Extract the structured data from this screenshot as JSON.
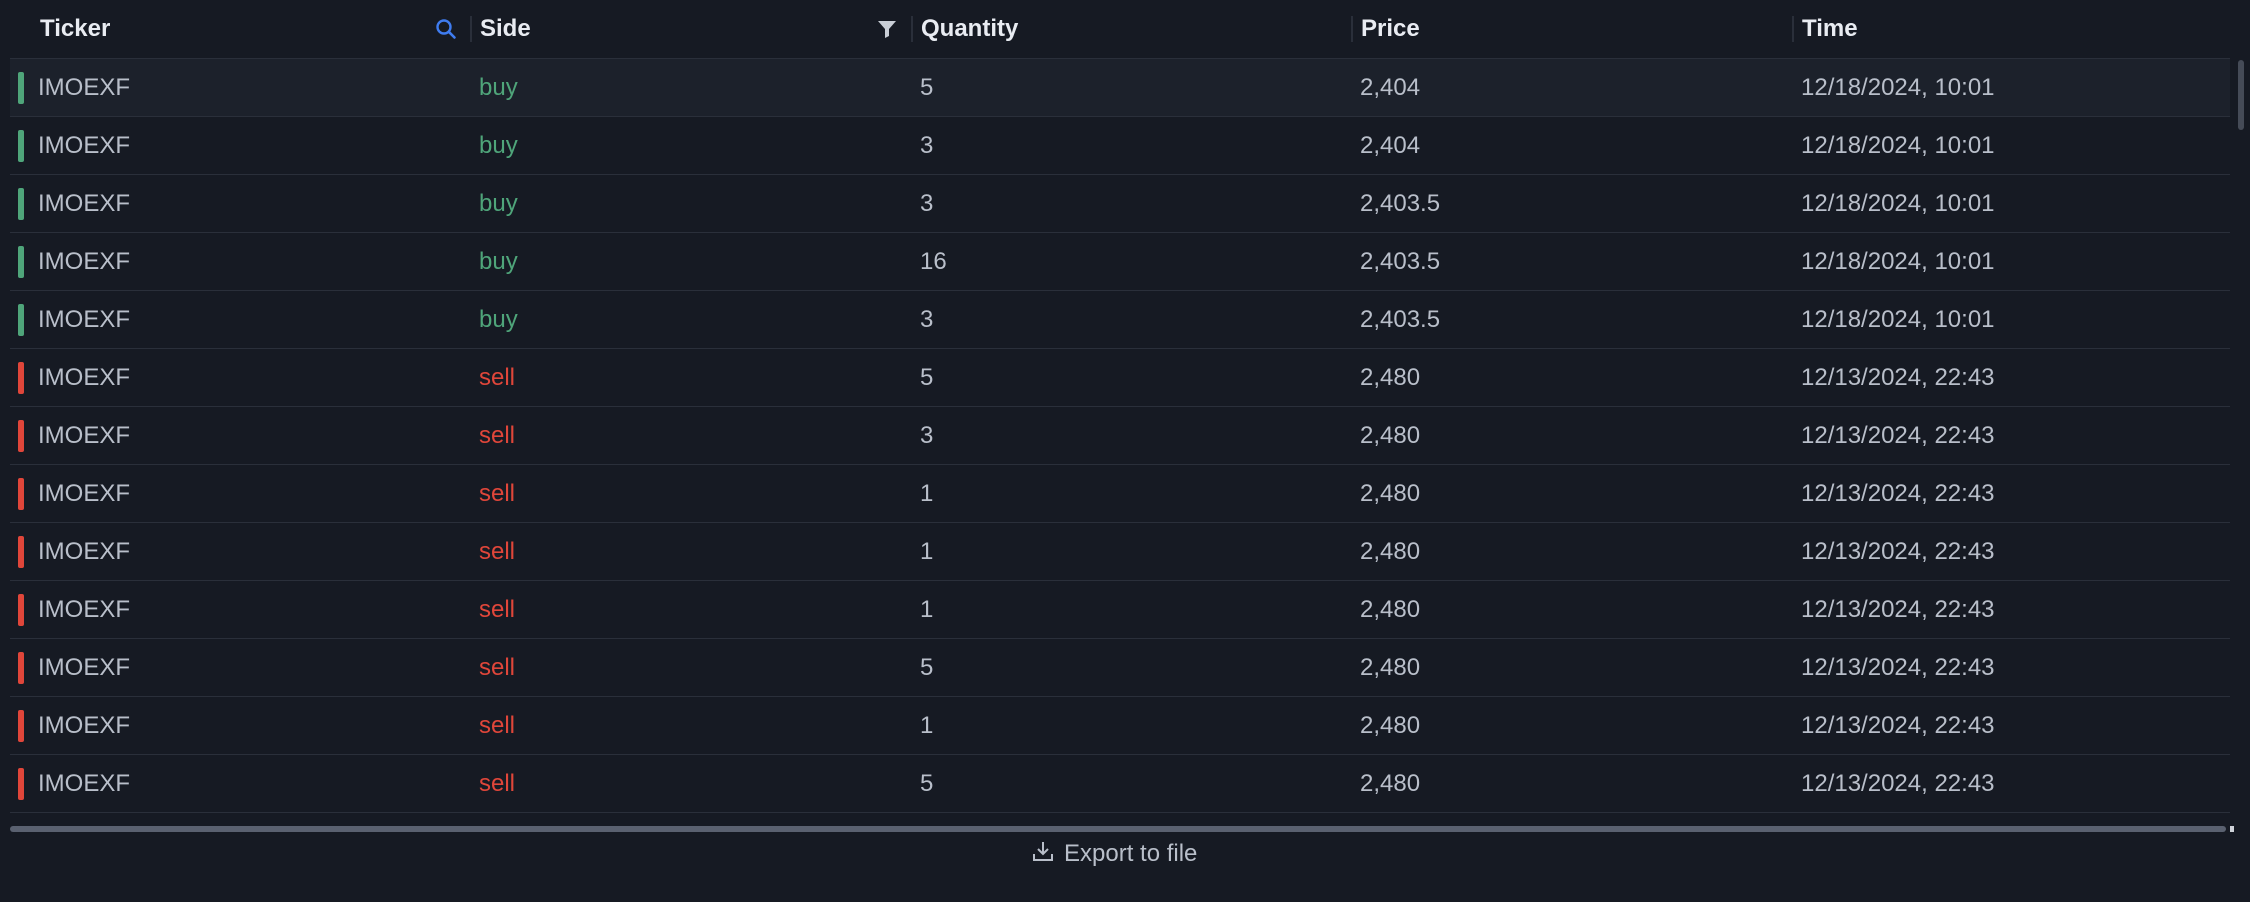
{
  "colors": {
    "buy": "#4fa57a",
    "sell": "#e0463a",
    "search_icon": "#3f7cf0"
  },
  "columns": [
    {
      "key": "ticker",
      "label": "Ticker"
    },
    {
      "key": "side",
      "label": "Side"
    },
    {
      "key": "quantity",
      "label": "Quantity"
    },
    {
      "key": "price",
      "label": "Price"
    },
    {
      "key": "time",
      "label": "Time"
    }
  ],
  "rows": [
    {
      "ticker": "IMOEXF",
      "side": "buy",
      "quantity": "5",
      "price": "2,404",
      "time": "12/18/2024, 10:01"
    },
    {
      "ticker": "IMOEXF",
      "side": "buy",
      "quantity": "3",
      "price": "2,404",
      "time": "12/18/2024, 10:01"
    },
    {
      "ticker": "IMOEXF",
      "side": "buy",
      "quantity": "3",
      "price": "2,403.5",
      "time": "12/18/2024, 10:01"
    },
    {
      "ticker": "IMOEXF",
      "side": "buy",
      "quantity": "16",
      "price": "2,403.5",
      "time": "12/18/2024, 10:01"
    },
    {
      "ticker": "IMOEXF",
      "side": "buy",
      "quantity": "3",
      "price": "2,403.5",
      "time": "12/18/2024, 10:01"
    },
    {
      "ticker": "IMOEXF",
      "side": "sell",
      "quantity": "5",
      "price": "2,480",
      "time": "12/13/2024, 22:43"
    },
    {
      "ticker": "IMOEXF",
      "side": "sell",
      "quantity": "3",
      "price": "2,480",
      "time": "12/13/2024, 22:43"
    },
    {
      "ticker": "IMOEXF",
      "side": "sell",
      "quantity": "1",
      "price": "2,480",
      "time": "12/13/2024, 22:43"
    },
    {
      "ticker": "IMOEXF",
      "side": "sell",
      "quantity": "1",
      "price": "2,480",
      "time": "12/13/2024, 22:43"
    },
    {
      "ticker": "IMOEXF",
      "side": "sell",
      "quantity": "1",
      "price": "2,480",
      "time": "12/13/2024, 22:43"
    },
    {
      "ticker": "IMOEXF",
      "side": "sell",
      "quantity": "5",
      "price": "2,480",
      "time": "12/13/2024, 22:43"
    },
    {
      "ticker": "IMOEXF",
      "side": "sell",
      "quantity": "1",
      "price": "2,480",
      "time": "12/13/2024, 22:43"
    },
    {
      "ticker": "IMOEXF",
      "side": "sell",
      "quantity": "5",
      "price": "2,480",
      "time": "12/13/2024, 22:43"
    }
  ],
  "footer": {
    "export_label": "Export to file",
    "export_icon": "download-icon"
  }
}
